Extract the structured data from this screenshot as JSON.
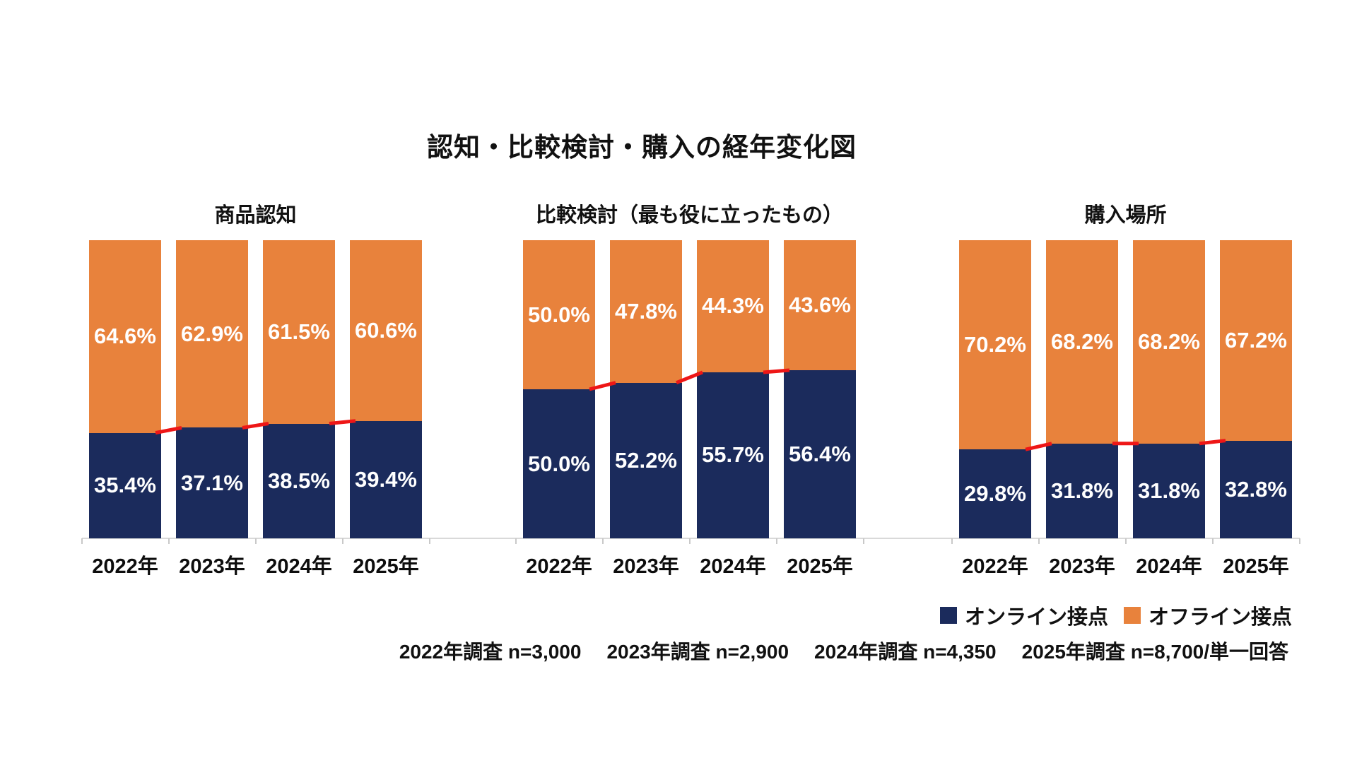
{
  "title": "認知・比較検討・購入の経年変化図",
  "colors": {
    "online_navy": "#1b2b5c",
    "offline_orange": "#e8823c",
    "connector_red": "#ee1616",
    "axis_gray": "#d9d9d9",
    "text_black": "#111111",
    "value_label_white": "#ffffff"
  },
  "legend": {
    "items": [
      {
        "label": "オンライン接点",
        "color_key": "online_navy"
      },
      {
        "label": "オフライン接点",
        "color_key": "offline_orange"
      }
    ]
  },
  "footnote": {
    "items": [
      "2022年調査 n=3,000",
      "2023年調査 n=2,900",
      "2024年調査 n=4,350",
      "2025年調査 n=8,700/単一回答"
    ]
  },
  "chart_data": [
    {
      "type": "bar",
      "stacked": true,
      "title": "商品認知",
      "categories": [
        "2022年",
        "2023年",
        "2024年",
        "2025年"
      ],
      "series": [
        {
          "name": "オンライン接点",
          "values": [
            35.4,
            37.1,
            38.5,
            39.4
          ]
        },
        {
          "name": "オフライン接点",
          "values": [
            64.6,
            62.9,
            61.5,
            60.6
          ]
        }
      ],
      "value_suffix": "%",
      "ylim": [
        0,
        100
      ],
      "grid": false,
      "connector_line": "red segments linking online-share boundary between adjacent bars"
    },
    {
      "type": "bar",
      "stacked": true,
      "title": "比較検討（最も役に立ったもの）",
      "categories": [
        "2022年",
        "2023年",
        "2024年",
        "2025年"
      ],
      "series": [
        {
          "name": "オンライン接点",
          "values": [
            50.0,
            52.2,
            55.7,
            56.4
          ]
        },
        {
          "name": "オフライン接点",
          "values": [
            50.0,
            47.8,
            44.3,
            43.6
          ]
        }
      ],
      "value_suffix": "%",
      "ylim": [
        0,
        100
      ],
      "grid": false,
      "connector_line": "red segments linking online-share boundary between adjacent bars"
    },
    {
      "type": "bar",
      "stacked": true,
      "title": "購入場所",
      "categories": [
        "2022年",
        "2023年",
        "2024年",
        "2025年"
      ],
      "series": [
        {
          "name": "オンライン接点",
          "values": [
            29.8,
            31.8,
            31.8,
            32.8
          ]
        },
        {
          "name": "オフライン接点",
          "values": [
            70.2,
            68.2,
            68.2,
            67.2
          ]
        }
      ],
      "value_suffix": "%",
      "ylim": [
        0,
        100
      ],
      "grid": false,
      "connector_line": "red segments linking online-share boundary between adjacent bars"
    }
  ]
}
